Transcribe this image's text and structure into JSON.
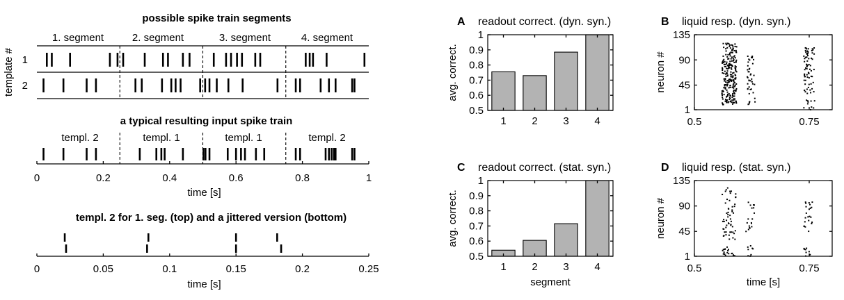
{
  "chart_data": [
    {
      "id": "possible-segments",
      "type": "raster",
      "title": "possible spike train segments",
      "ylabel": "template #",
      "segment_labels": [
        "1. segment",
        "2. segment",
        "3. segment",
        "4. segment"
      ],
      "segment_boundaries": [
        0.25,
        0.5,
        0.75
      ],
      "xlim": [
        0,
        1
      ],
      "rows": [
        {
          "label": "1",
          "spikes": [
            0.03,
            0.045,
            0.1,
            0.22,
            0.243,
            0.26,
            0.325,
            0.38,
            0.395,
            0.44,
            0.46,
            0.533,
            0.57,
            0.585,
            0.603,
            0.618,
            0.658,
            0.673,
            0.81,
            0.822,
            0.832,
            0.873,
            0.987
          ]
        },
        {
          "label": "2",
          "spikes": [
            0.02,
            0.08,
            0.15,
            0.178,
            0.297,
            0.316,
            0.377,
            0.405,
            0.418,
            0.433,
            0.492,
            0.507,
            0.52,
            0.542,
            0.577,
            0.62,
            0.725,
            0.78,
            0.793,
            0.855,
            0.88,
            0.9,
            0.95,
            0.957
          ]
        }
      ]
    },
    {
      "id": "typical-input",
      "type": "raster",
      "title": "a typical resulting input spike train",
      "segment_labels": [
        "templ. 2",
        "templ. 1",
        "templ. 1",
        "templ. 2"
      ],
      "segment_boundaries": [
        0.25,
        0.5,
        0.75
      ],
      "xlabel": "time [s]",
      "xlim": [
        0,
        1
      ],
      "xticks": [
        0,
        0.2,
        0.4,
        0.6,
        0.8,
        1
      ],
      "xticklabels": [
        "0",
        "0.2",
        "0.4",
        "0.6",
        "0.8",
        "1"
      ],
      "spikes": [
        0.02,
        0.08,
        0.15,
        0.178,
        0.31,
        0.36,
        0.375,
        0.385,
        0.44,
        0.502,
        0.508,
        0.52,
        0.575,
        0.6,
        0.615,
        0.627,
        0.66,
        0.685,
        0.78,
        0.793,
        0.87,
        0.88,
        0.888,
        0.895,
        0.9,
        0.95,
        0.957
      ]
    },
    {
      "id": "jitter",
      "type": "raster",
      "title": "templ. 2 for 1. seg. (top) and a jittered version (bottom)",
      "xlabel": "time [s]",
      "xlim": [
        0,
        0.25
      ],
      "xticks": [
        0,
        0.05,
        0.1,
        0.15,
        0.2,
        0.25
      ],
      "xticklabels": [
        "0",
        "0.05",
        "0.1",
        "0.15",
        "0.2",
        "0.25"
      ],
      "rows": [
        {
          "label": "top",
          "spikes": [
            0.021,
            0.084,
            0.15,
            0.181
          ]
        },
        {
          "label": "bottom",
          "spikes": [
            0.022,
            0.083,
            0.15,
            0.184
          ]
        }
      ]
    },
    {
      "id": "A",
      "panel_letter": "A",
      "type": "bar",
      "title": "readout correct. (dyn. syn.)",
      "ylabel": "avg. correct.",
      "xlabel": "",
      "categories": [
        "1",
        "2",
        "3",
        "4"
      ],
      "values": [
        0.755,
        0.73,
        0.885,
        1.0
      ],
      "ylim": [
        0.5,
        1
      ],
      "yticks": [
        0.5,
        0.6,
        0.7,
        0.8,
        0.9,
        1
      ],
      "yticklabels": [
        "0.5",
        "0.6",
        "0.7",
        "0.8",
        "0.9",
        "1"
      ],
      "bar_color": "#b3b3b3"
    },
    {
      "id": "B",
      "panel_letter": "B",
      "type": "scatter",
      "title": "liquid resp. (dyn. syn.)",
      "ylabel": "neuron #",
      "xlabel": "",
      "xlim": [
        0.5,
        0.8
      ],
      "ylim": [
        1,
        135
      ],
      "xticks": [
        0.5,
        0.75
      ],
      "xticklabels": [
        "0.5",
        "0.75"
      ],
      "yticks": [
        1,
        45,
        90,
        135
      ],
      "yticklabels": [
        "1",
        "45",
        "90",
        "135"
      ],
      "clusters": [
        {
          "x": [
            0.56,
            0.592
          ],
          "y": [
            10,
            120
          ],
          "n": 230,
          "seed": 11
        },
        {
          "x": [
            0.615,
            0.632
          ],
          "y": [
            8,
            100
          ],
          "n": 42,
          "seed": 23
        },
        {
          "x": [
            0.738,
            0.762
          ],
          "y": [
            30,
            112
          ],
          "n": 70,
          "seed": 37
        },
        {
          "x": [
            0.738,
            0.762
          ],
          "y": [
            1,
            18
          ],
          "n": 10,
          "seed": 41
        }
      ]
    },
    {
      "id": "C",
      "panel_letter": "C",
      "type": "bar",
      "title": "readout correct. (stat. syn.)",
      "ylabel": "avg. correct.",
      "xlabel": "segment",
      "categories": [
        "1",
        "2",
        "3",
        "4"
      ],
      "values": [
        0.54,
        0.605,
        0.715,
        1.0
      ],
      "ylim": [
        0.5,
        1
      ],
      "yticks": [
        0.5,
        0.6,
        0.7,
        0.8,
        0.9,
        1
      ],
      "yticklabels": [
        "0.5",
        "0.6",
        "0.7",
        "0.8",
        "0.9",
        "1"
      ],
      "bar_color": "#b3b3b3"
    },
    {
      "id": "D",
      "panel_letter": "D",
      "type": "scatter",
      "title": "liquid resp. (stat. syn.)",
      "ylabel": "neuron #",
      "xlabel": "time [s]",
      "xlim": [
        0.5,
        0.8
      ],
      "ylim": [
        1,
        135
      ],
      "xticks": [
        0.5,
        0.75
      ],
      "xticklabels": [
        "0.5",
        "0.75"
      ],
      "yticks": [
        1,
        45,
        90,
        135
      ],
      "yticklabels": [
        "1",
        "45",
        "90",
        "135"
      ],
      "clusters": [
        {
          "x": [
            0.56,
            0.59
          ],
          "y": [
            30,
            125
          ],
          "n": 55,
          "seed": 51
        },
        {
          "x": [
            0.56,
            0.59
          ],
          "y": [
            1,
            20
          ],
          "n": 18,
          "seed": 53
        },
        {
          "x": [
            0.612,
            0.632
          ],
          "y": [
            40,
            100
          ],
          "n": 18,
          "seed": 57
        },
        {
          "x": [
            0.612,
            0.632
          ],
          "y": [
            1,
            20
          ],
          "n": 8,
          "seed": 59
        },
        {
          "x": [
            0.738,
            0.758
          ],
          "y": [
            40,
            100
          ],
          "n": 22,
          "seed": 61
        },
        {
          "x": [
            0.738,
            0.758
          ],
          "y": [
            1,
            20
          ],
          "n": 8,
          "seed": 67
        }
      ]
    }
  ]
}
